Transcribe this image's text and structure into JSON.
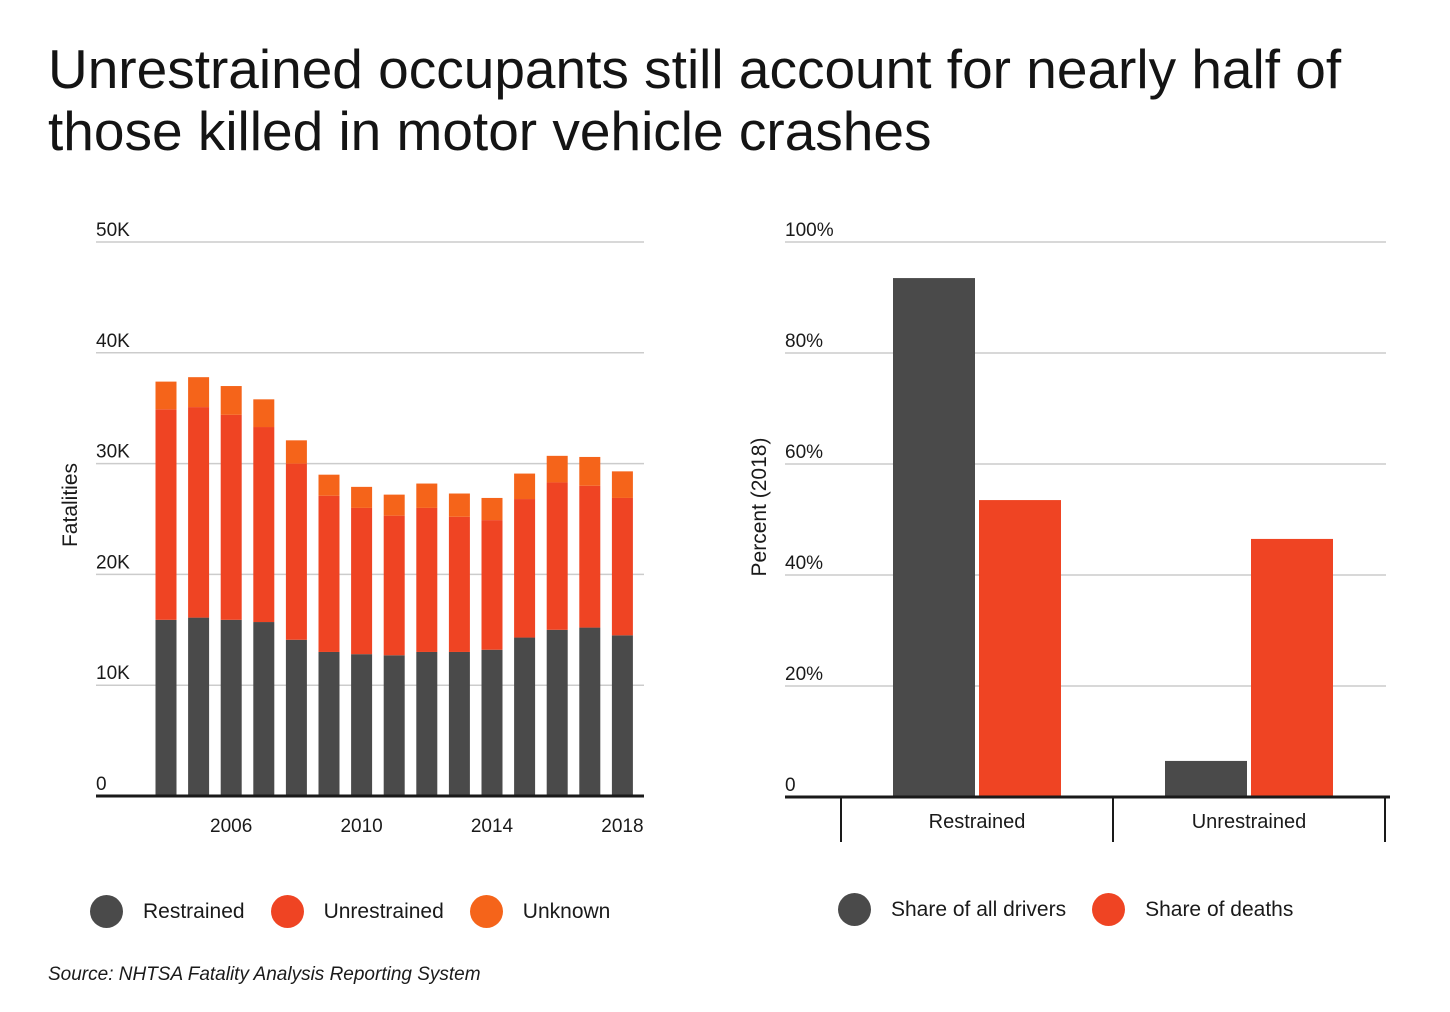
{
  "title": "Unrestrained occupants still account for nearly half of those killed in motor vehicle crashes",
  "source": "Source: NHTSA Fatality Analysis Reporting System",
  "colors": {
    "restrained": "#4a4a4a",
    "unrestrained": "#ef4423",
    "unknown": "#f5641a",
    "grid": "#cccccc",
    "axis": "#1a1a1a"
  },
  "chart_data": [
    {
      "type": "bar",
      "stacked": true,
      "ylabel": "Fatalities",
      "ylim": [
        0,
        50000
      ],
      "yticks": [
        {
          "value": 0,
          "label": "0"
        },
        {
          "value": 10000,
          "label": "10K"
        },
        {
          "value": 20000,
          "label": "20K"
        },
        {
          "value": 30000,
          "label": "30K"
        },
        {
          "value": 40000,
          "label": "40K"
        },
        {
          "value": 50000,
          "label": "50K"
        }
      ],
      "categories": [
        2004,
        2005,
        2006,
        2007,
        2008,
        2009,
        2010,
        2011,
        2012,
        2013,
        2014,
        2015,
        2016,
        2017,
        2018
      ],
      "xtick_labels": [
        "2006",
        "2010",
        "2014",
        "2018"
      ],
      "legend": "bottom",
      "series": [
        {
          "name": "Restrained",
          "color_key": "restrained",
          "values": [
            15900,
            16100,
            15900,
            15700,
            14100,
            13000,
            12800,
            12700,
            13000,
            13000,
            13200,
            14300,
            15000,
            15200,
            14500
          ]
        },
        {
          "name": "Unrestrained",
          "color_key": "unrestrained",
          "values": [
            19000,
            19000,
            18500,
            17600,
            15900,
            14100,
            13200,
            12600,
            13000,
            12200,
            11700,
            12500,
            13300,
            12800,
            12400
          ]
        },
        {
          "name": "Unknown",
          "color_key": "unknown",
          "values": [
            2500,
            2700,
            2600,
            2500,
            2100,
            1900,
            1900,
            1900,
            2200,
            2100,
            2000,
            2300,
            2400,
            2600,
            2400
          ]
        }
      ]
    },
    {
      "type": "bar",
      "ylabel": "Percent (2018)",
      "ylim": [
        0,
        100
      ],
      "yticks": [
        {
          "value": 0,
          "label": "0"
        },
        {
          "value": 20,
          "label": "20%"
        },
        {
          "value": 40,
          "label": "40%"
        },
        {
          "value": 60,
          "label": "60%"
        },
        {
          "value": 80,
          "label": "80%"
        },
        {
          "value": 100,
          "label": "100%"
        }
      ],
      "categories": [
        "Restrained",
        "Unrestrained"
      ],
      "legend": "bottom",
      "series": [
        {
          "name": "Share of all drivers",
          "color_key": "restrained",
          "values": [
            93.5,
            6.5
          ]
        },
        {
          "name": "Share of deaths",
          "color_key": "unrestrained",
          "values": [
            53.5,
            46.5
          ]
        }
      ]
    }
  ]
}
